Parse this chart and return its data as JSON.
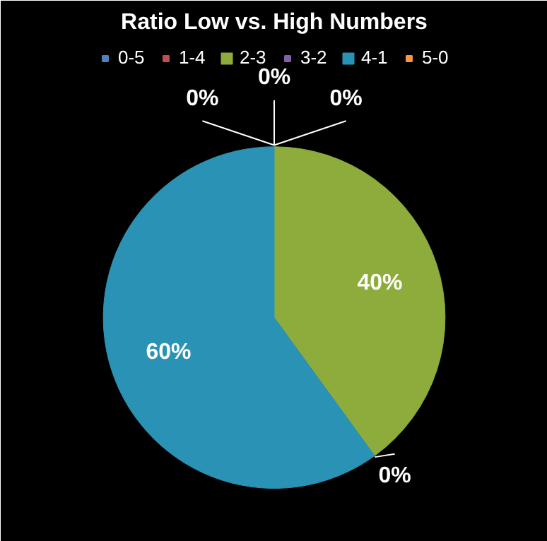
{
  "chart_data": {
    "type": "pie",
    "title": "Ratio Low vs. High Numbers",
    "categories": [
      "0-5",
      "1-4",
      "2-3",
      "3-2",
      "4-1",
      "5-0"
    ],
    "values": [
      0,
      0,
      40,
      0,
      60,
      0
    ],
    "value_labels": [
      "0%",
      "0%",
      "40%",
      "0%",
      "60%",
      "0%"
    ],
    "colors": [
      "#4f81bd",
      "#c0504d",
      "#8eac3c",
      "#8064a2",
      "#2a93b5",
      "#f79646"
    ],
    "legend": "top"
  }
}
